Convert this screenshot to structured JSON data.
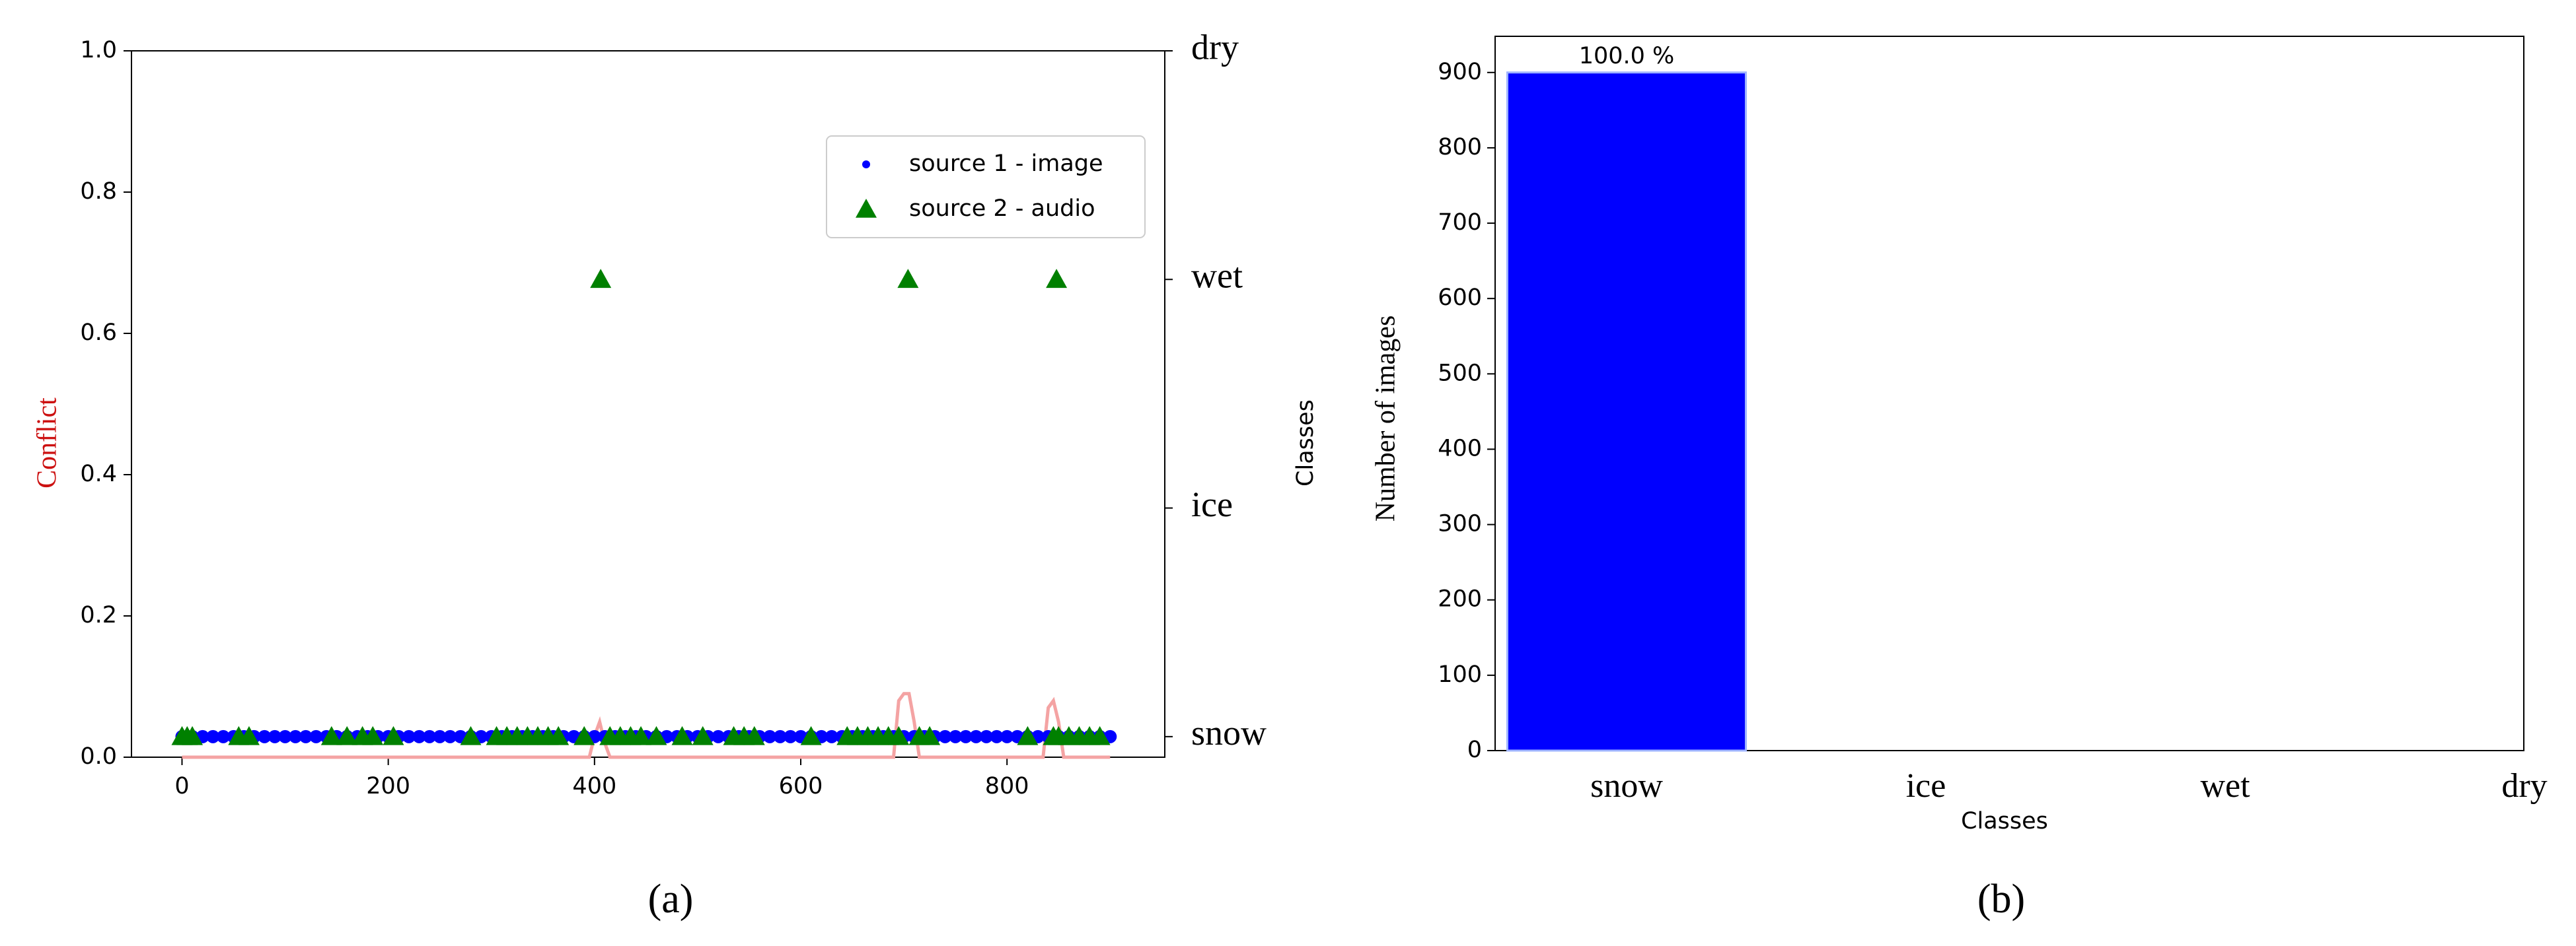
{
  "chart_data": [
    {
      "type": "scatter",
      "caption": "(a)",
      "ylabel": "Conflict",
      "y2label": "Classes",
      "xlim": [
        -49,
        953
      ],
      "xticks": [
        0,
        200,
        400,
        600,
        800
      ],
      "ylim": [
        0,
        1
      ],
      "yticks": [
        {
          "value": 0,
          "label": "0.0"
        },
        0.2,
        0.4,
        0.6,
        0.8,
        {
          "value": 1,
          "label": "1.0"
        }
      ],
      "y2lim": [
        -0.09,
        3
      ],
      "y2ticks": [
        {
          "value": 0,
          "label": "snow"
        },
        {
          "value": 1,
          "label": "ice"
        },
        {
          "value": 2,
          "label": "wet"
        },
        {
          "value": 3,
          "label": "dry"
        }
      ],
      "legend": "upper right",
      "series": [
        {
          "name": "source 1 - image",
          "color": "#0000ff",
          "marker": "dot",
          "axis": "y2",
          "x": [
            0,
            10,
            20,
            30,
            40,
            50,
            60,
            70,
            80,
            90,
            100,
            110,
            120,
            130,
            140,
            150,
            160,
            170,
            180,
            190,
            200,
            210,
            220,
            230,
            240,
            250,
            260,
            270,
            280,
            290,
            300,
            310,
            320,
            330,
            340,
            350,
            360,
            370,
            380,
            390,
            400,
            410,
            420,
            430,
            440,
            450,
            460,
            470,
            480,
            490,
            500,
            510,
            520,
            530,
            540,
            550,
            560,
            570,
            580,
            590,
            600,
            610,
            620,
            630,
            640,
            650,
            660,
            670,
            680,
            690,
            700,
            710,
            720,
            730,
            740,
            750,
            760,
            770,
            780,
            790,
            800,
            810,
            820,
            830,
            840,
            850,
            860,
            870,
            880,
            890,
            900
          ],
          "values": [
            0,
            0,
            0,
            0,
            0,
            0,
            0,
            0,
            0,
            0,
            0,
            0,
            0,
            0,
            0,
            0,
            0,
            0,
            0,
            0,
            0,
            0,
            0,
            0,
            0,
            0,
            0,
            0,
            0,
            0,
            0,
            0,
            0,
            0,
            0,
            0,
            0,
            0,
            0,
            0,
            0,
            0,
            0,
            0,
            0,
            0,
            0,
            0,
            0,
            0,
            0,
            0,
            0,
            0,
            0,
            0,
            0,
            0,
            0,
            0,
            0,
            0,
            0,
            0,
            0,
            0,
            0,
            0,
            0,
            0,
            0,
            0,
            0,
            0,
            0,
            0,
            0,
            0,
            0,
            0,
            0,
            0,
            0,
            0,
            0,
            0,
            0,
            0,
            0,
            0,
            0
          ]
        },
        {
          "name": "source 2 - audio",
          "color": "#008000",
          "marker": "triangle",
          "axis": "y2",
          "x": [
            0,
            5,
            10,
            55,
            65,
            145,
            160,
            175,
            185,
            205,
            280,
            305,
            315,
            325,
            335,
            345,
            355,
            365,
            390,
            406,
            415,
            425,
            435,
            445,
            460,
            485,
            505,
            535,
            545,
            555,
            610,
            645,
            655,
            665,
            675,
            685,
            695,
            704,
            715,
            725,
            820,
            845,
            848,
            850,
            860,
            870,
            880,
            890
          ],
          "values": [
            0,
            0,
            0,
            0,
            0,
            0,
            0,
            0,
            0,
            0,
            0,
            0,
            0,
            0,
            0,
            0,
            0,
            0,
            0,
            2,
            0,
            0,
            0,
            0,
            0,
            0,
            0,
            0,
            0,
            0,
            0,
            0,
            0,
            0,
            0,
            0,
            0,
            2,
            0,
            0,
            0,
            0,
            2,
            0,
            0,
            0,
            0,
            0
          ]
        },
        {
          "color": "#f4a3a3",
          "marker": "line",
          "x": [
            0,
            395,
            400,
            405,
            410,
            415,
            690,
            695,
            700,
            705,
            710,
            715,
            835,
            840,
            845,
            850,
            855,
            900
          ],
          "values": [
            0,
            0,
            0.03,
            0.05,
            0.02,
            0,
            0,
            0.08,
            0.09,
            0.09,
            0.05,
            0,
            0,
            0.07,
            0.08,
            0.05,
            0,
            0
          ]
        }
      ]
    },
    {
      "type": "bar",
      "caption": "(b)",
      "xlabel": "Classes",
      "ylabel": "Number of images",
      "categories": [
        "snow",
        "ice",
        "wet",
        "dry"
      ],
      "values": [
        900,
        0,
        0,
        0
      ],
      "value_labels": [
        "100.0 %",
        null,
        null,
        null
      ],
      "color": "#0000ff",
      "ylim": [
        0,
        948
      ],
      "yticks": [
        0,
        100,
        200,
        300,
        400,
        500,
        600,
        700,
        800,
        900
      ]
    }
  ]
}
